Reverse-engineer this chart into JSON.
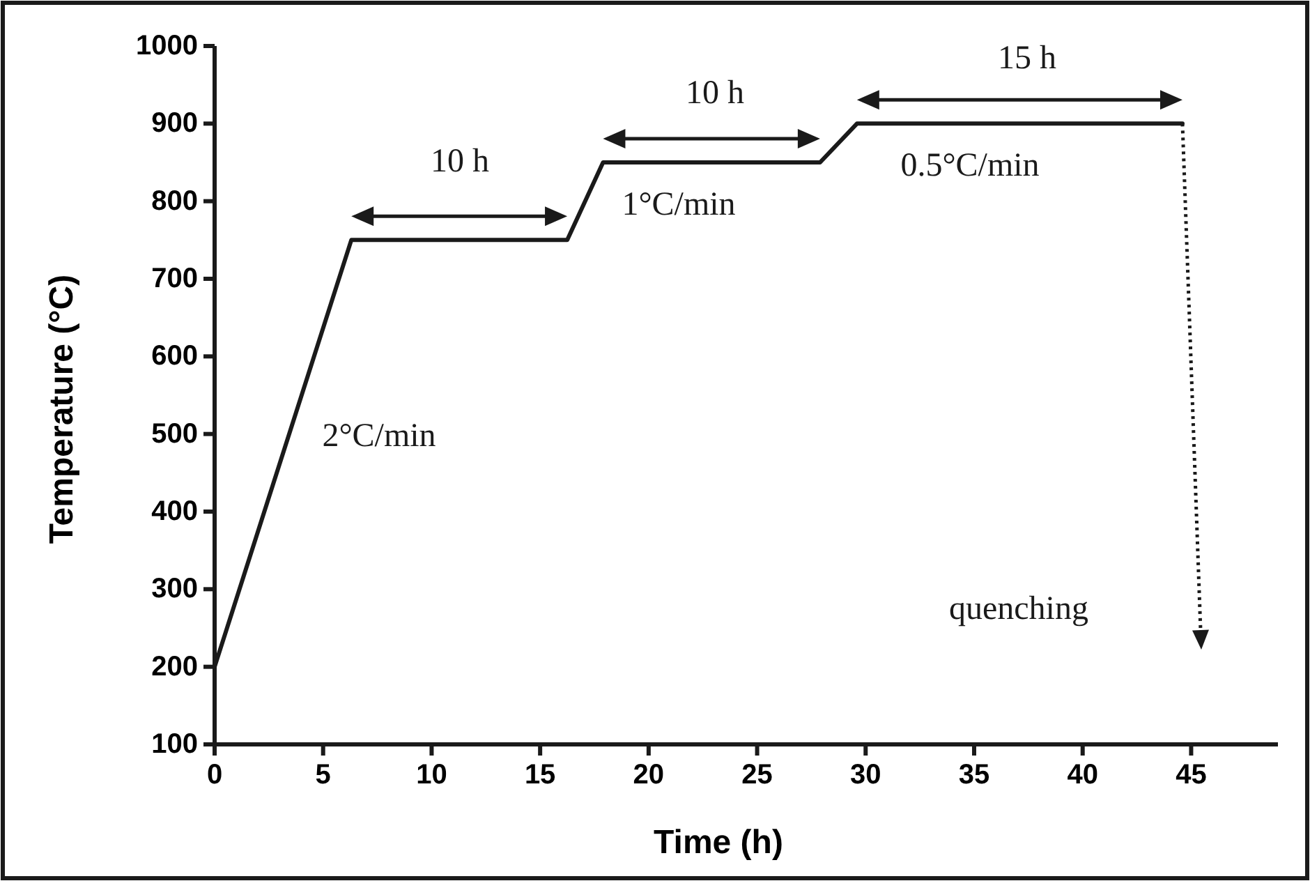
{
  "chart_data": {
    "type": "line",
    "xlabel": "Time (h)",
    "ylabel": "Temperature (°C)",
    "x": [
      0,
      6.3,
      16.25,
      17.9,
      27.9,
      29.6,
      44.6
    ],
    "series": [
      {
        "color": "#1a1a1a",
        "values": [
          200,
          750,
          750,
          850,
          850,
          900,
          900
        ],
        "line_style": "solid"
      }
    ],
    "xlim": [
      0,
      49
    ],
    "xticks": [
      0,
      5,
      10,
      15,
      20,
      25,
      30,
      35,
      40,
      45
    ],
    "ylim": [
      100,
      1000
    ],
    "yticks": [
      100,
      200,
      300,
      400,
      500,
      600,
      700,
      800,
      900,
      1000
    ],
    "marker": "none",
    "grid": false,
    "annotations": [
      "10 h",
      "10 h",
      "15 h",
      "2°C/min",
      "1°C/min",
      "0.5°C/min",
      "quenching"
    ]
  }
}
